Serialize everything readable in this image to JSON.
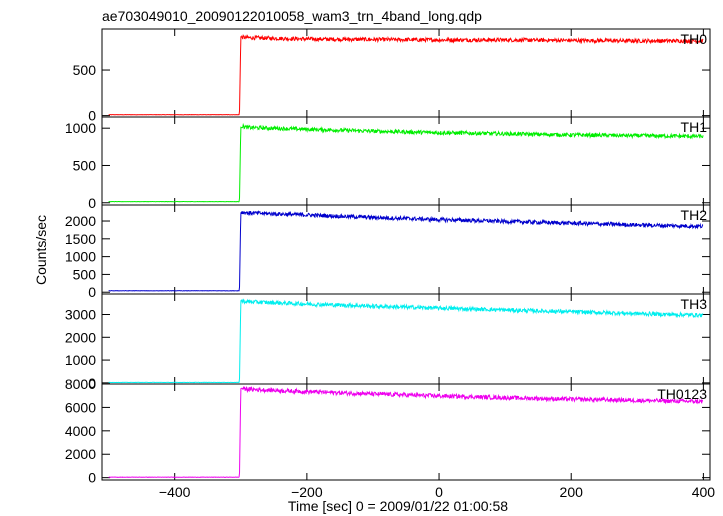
{
  "chart_data": {
    "type": "line",
    "title": "ae703049010_20090122010058_wam3_trn_4band_long.qdp",
    "xlabel": "Time [sec] 0 = 2009/01/22 01:00:58",
    "ylabel": "Counts/sec",
    "xlim": [
      -510,
      410
    ],
    "x_ticks": [
      -400,
      -200,
      0,
      200,
      400
    ],
    "x_tick_labels": [
      "−400",
      "−200",
      "0",
      "200",
      "400"
    ],
    "grid": false,
    "panels": [
      {
        "name": "TH0",
        "color": "#ff0000",
        "ylim": [
          -15,
          950
        ],
        "yticks": [
          0,
          500
        ],
        "ytick_labels": [
          "0",
          "500"
        ],
        "x": [
          -500,
          -302,
          -300,
          -290,
          -200,
          -100,
          0,
          100,
          200,
          300,
          400
        ],
        "y": [
          10,
          10,
          860,
          855,
          840,
          835,
          830,
          830,
          825,
          820,
          820
        ]
      },
      {
        "name": "TH1",
        "color": "#00ee00",
        "ylim": [
          -30,
          1150
        ],
        "yticks": [
          0,
          500,
          1000
        ],
        "ytick_labels": [
          "0",
          "500",
          "1000"
        ],
        "x": [
          -500,
          -302,
          -300,
          -290,
          -200,
          -100,
          0,
          100,
          200,
          300,
          400
        ],
        "y": [
          15,
          15,
          1030,
          1010,
          985,
          960,
          940,
          925,
          910,
          900,
          890
        ]
      },
      {
        "name": "TH2",
        "color": "#0000cc",
        "ylim": [
          -50,
          2450
        ],
        "yticks": [
          0,
          500,
          1000,
          1500,
          2000
        ],
        "ytick_labels": [
          "0",
          "500",
          "1000",
          "1500",
          "2000"
        ],
        "x": [
          -500,
          -302,
          -300,
          -290,
          -200,
          -100,
          0,
          100,
          200,
          300,
          400
        ],
        "y": [
          40,
          40,
          2250,
          2230,
          2170,
          2100,
          2040,
          1990,
          1940,
          1890,
          1850
        ]
      },
      {
        "name": "TH3",
        "color": "#00eeee",
        "ylim": [
          -50,
          3900
        ],
        "yticks": [
          0,
          1000,
          2000,
          3000
        ],
        "ytick_labels": [
          "0",
          "1000",
          "2000",
          "3000"
        ],
        "x": [
          -500,
          -302,
          -300,
          -290,
          -200,
          -100,
          0,
          100,
          200,
          300,
          400
        ],
        "y": [
          20,
          20,
          3600,
          3560,
          3460,
          3370,
          3280,
          3200,
          3120,
          3040,
          2970
        ]
      },
      {
        "name": "TH0123",
        "color": "#ee00ee",
        "ylim": [
          -200,
          8000
        ],
        "yticks": [
          0,
          2000,
          4000,
          6000,
          8000
        ],
        "ytick_labels": [
          "0",
          "2000",
          "4000",
          "6000",
          "8000"
        ],
        "x": [
          -500,
          -302,
          -300,
          -290,
          -200,
          -100,
          0,
          100,
          200,
          300,
          400
        ],
        "y": [
          40,
          40,
          7650,
          7550,
          7350,
          7150,
          6980,
          6830,
          6700,
          6600,
          6500
        ]
      }
    ]
  }
}
